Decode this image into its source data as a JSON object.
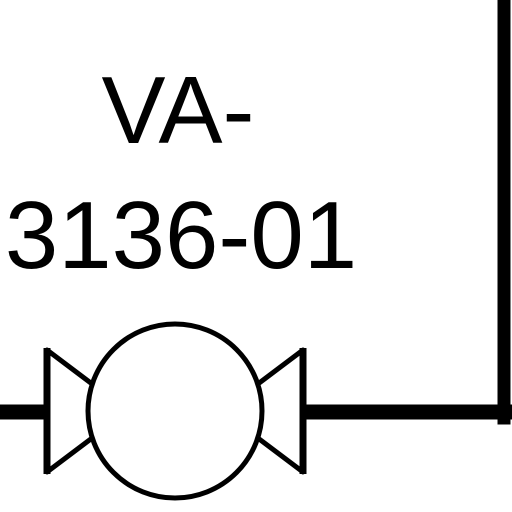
{
  "valve": {
    "tag_line1": "VA-",
    "tag_line2": "3136-01",
    "symbol": "valve-icon"
  },
  "colors": {
    "line": "#000000",
    "background": "#ffffff"
  }
}
